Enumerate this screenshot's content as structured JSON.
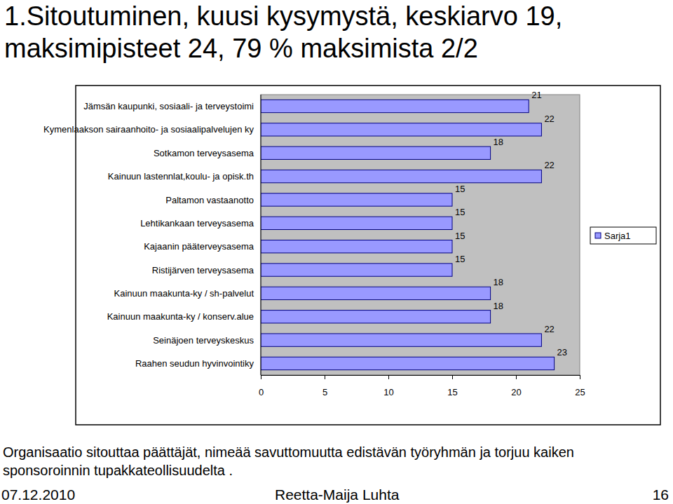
{
  "chart_data": {
    "type": "bar",
    "orientation": "horizontal",
    "title": "1.Sitoutuminen, kuusi kysymystä, keskiarvo 19, maksimipisteet 24, 79 % maksimista 2/2",
    "categories": [
      "Jämsän kaupunki, sosiaali- ja terveystoimi",
      "Kymenlaakson sairaanhoito- ja sosiaalipalvelujen ky",
      "Sotkamon terveysasema",
      "Kainuun lastennlat,koulu- ja opisk.th",
      "Paltamon vastaanotto",
      "Lehtikankaan terveysasema",
      "Kajaanin pääterveysasema",
      "Ristijärven terveysasema",
      "Kainuun maakunta-ky / sh-palvelut",
      "Kainuun maakunta-ky / konserv.alue",
      "Seinäjoen terveyskeskus",
      "Raahen seudun hyvinvointiky"
    ],
    "series": [
      {
        "name": "Sarja1",
        "color": "#9999ff",
        "values": [
          21,
          22,
          18,
          22,
          15,
          15,
          15,
          15,
          18,
          18,
          22,
          23
        ]
      }
    ],
    "xlim": [
      0,
      25
    ],
    "xticks": [
      0,
      5,
      10,
      15,
      20,
      25
    ],
    "grid": false,
    "legend": "right",
    "data_labels": true
  },
  "slide": {
    "caption": "Organisaatio sitouttaa päättäjät, nimeää savuttomuutta edistävän työryhmän ja torjuu kaiken sponsoroinnin tupakkateollisuudelta .",
    "date": "07.12.2010",
    "author": "Reetta-Maija Luhta",
    "page": 16
  }
}
